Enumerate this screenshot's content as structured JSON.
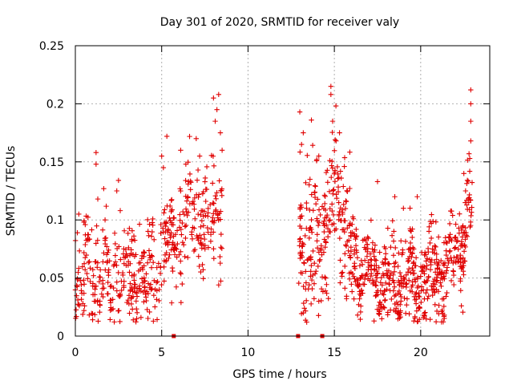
{
  "chart_data": {
    "type": "scatter",
    "title": "Day 301 of 2020, SRMTID for receiver valy",
    "xlabel": "GPS time / hours",
    "ylabel": "SRMTID / TECUs",
    "xlim": [
      0,
      24
    ],
    "ylim": [
      0,
      0.25
    ],
    "xticks": [
      0,
      5,
      10,
      15,
      20
    ],
    "yticks": [
      0,
      0.05,
      0.1,
      0.15,
      0.2,
      0.25
    ],
    "xtick_labels": [
      "0",
      "5",
      "10",
      "15",
      "20"
    ],
    "ytick_labels": [
      "0",
      "0.05",
      "0.1",
      "0.15",
      "0.2",
      "0.25"
    ],
    "grid": true,
    "marker": "+",
    "color": "#e00000",
    "zero_markers": [
      5.7,
      12.9,
      14.3
    ],
    "series": [
      {
        "name": "SRMTID",
        "segments": [
          {
            "t_start": 0.0,
            "t_end": 8.5,
            "n": 520,
            "seed": 11,
            "trend": [
              [
                0.0,
                0.05
              ],
              [
                1.0,
                0.055
              ],
              [
                2.0,
                0.055
              ],
              [
                3.0,
                0.06
              ],
              [
                4.0,
                0.045
              ],
              [
                4.6,
                0.055
              ],
              [
                5.5,
                0.085
              ],
              [
                6.5,
                0.1
              ],
              [
                7.5,
                0.1
              ],
              [
                8.5,
                0.12
              ]
            ],
            "spread": 0.022
          },
          {
            "t_start": 12.9,
            "t_end": 15.9,
            "n": 230,
            "seed": 23,
            "trend": [
              [
                12.9,
                0.09
              ],
              [
                13.5,
                0.075
              ],
              [
                14.3,
                0.1
              ],
              [
                15.0,
                0.12
              ],
              [
                15.9,
                0.09
              ]
            ],
            "spread": 0.03
          },
          {
            "t_start": 15.9,
            "t_end": 23.0,
            "n": 560,
            "seed": 37,
            "trend": [
              [
                15.9,
                0.075
              ],
              [
                17.0,
                0.055
              ],
              [
                18.0,
                0.05
              ],
              [
                19.0,
                0.05
              ],
              [
                20.0,
                0.045
              ],
              [
                21.0,
                0.055
              ],
              [
                22.0,
                0.065
              ],
              [
                22.5,
                0.09
              ],
              [
                23.0,
                0.11
              ]
            ],
            "spread": 0.018
          }
        ],
        "peaks": [
          [
            0.2,
            0.105
          ],
          [
            0.5,
            0.098
          ],
          [
            1.2,
            0.158
          ],
          [
            1.2,
            0.148
          ],
          [
            1.3,
            0.118
          ],
          [
            2.4,
            0.125
          ],
          [
            2.5,
            0.134
          ],
          [
            2.6,
            0.108
          ],
          [
            5.0,
            0.155
          ],
          [
            5.3,
            0.172
          ],
          [
            5.1,
            0.145
          ],
          [
            6.1,
            0.16
          ],
          [
            6.4,
            0.148
          ],
          [
            7.0,
            0.17
          ],
          [
            7.2,
            0.155
          ],
          [
            8.0,
            0.205
          ],
          [
            8.3,
            0.208
          ],
          [
            8.2,
            0.195
          ],
          [
            8.4,
            0.175
          ],
          [
            8.1,
            0.185
          ],
          [
            8.5,
            0.16
          ],
          [
            13.0,
            0.193
          ],
          [
            13.2,
            0.175
          ],
          [
            13.1,
            0.165
          ],
          [
            14.1,
            0.155
          ],
          [
            14.8,
            0.215
          ],
          [
            14.8,
            0.208
          ],
          [
            14.9,
            0.185
          ],
          [
            15.3,
            0.175
          ],
          [
            15.1,
            0.168
          ],
          [
            17.5,
            0.133
          ],
          [
            18.5,
            0.12
          ],
          [
            19.0,
            0.11
          ],
          [
            19.8,
            0.12
          ],
          [
            22.9,
            0.212
          ],
          [
            22.9,
            0.2
          ],
          [
            22.9,
            0.185
          ],
          [
            22.9,
            0.168
          ],
          [
            22.8,
            0.157
          ],
          [
            22.5,
            0.14
          ],
          [
            22.6,
            0.125
          ],
          [
            0.5,
            0.022
          ],
          [
            1.0,
            0.014
          ],
          [
            13.2,
            0.02
          ],
          [
            13.4,
            0.012
          ],
          [
            3.8,
            0.016
          ],
          [
            17.3,
            0.013
          ],
          [
            19.6,
            0.013
          ],
          [
            20.2,
            0.018
          ],
          [
            14.1,
            0.03
          ]
        ]
      }
    ]
  }
}
